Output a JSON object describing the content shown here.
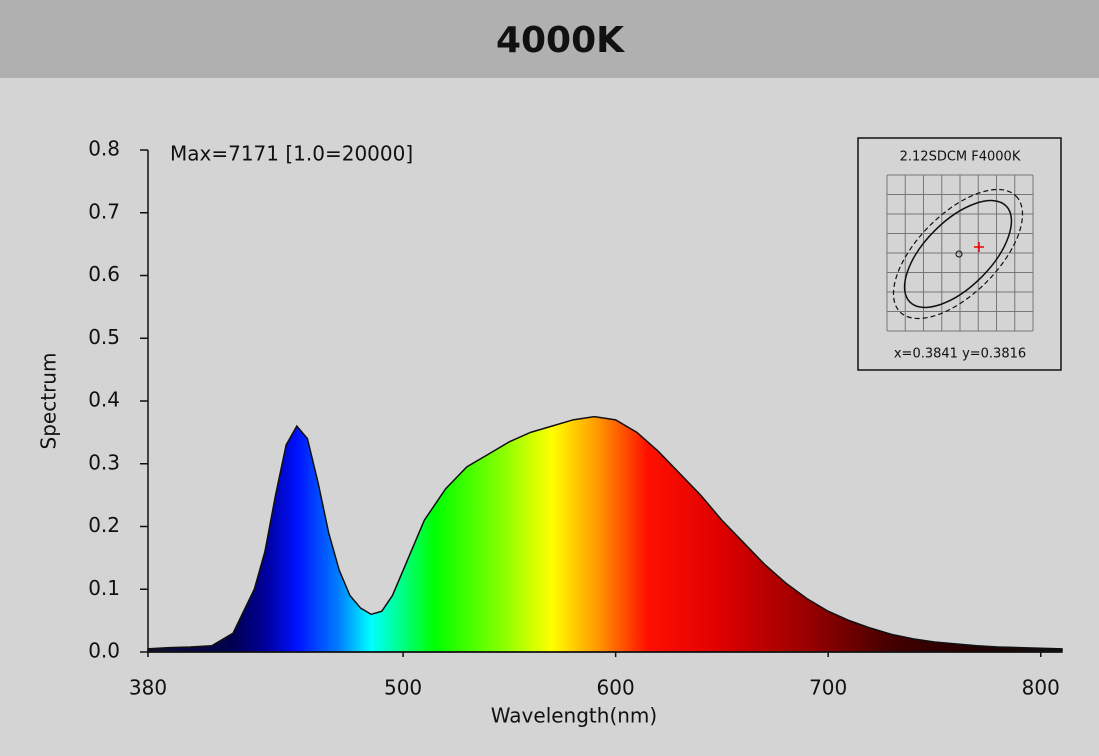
{
  "chart_data": {
    "type": "area",
    "title": "4000K",
    "annotation": "Max=7171  [1.0=20000]",
    "inset_title": "2.12SDCM  F4000K",
    "inset_label": "x=0.3841  y=0.3816",
    "xlabel": "Wavelength(nm)",
    "ylabel": "Spectrum",
    "x": [
      380,
      390,
      400,
      410,
      420,
      430,
      435,
      440,
      445,
      450,
      455,
      460,
      465,
      470,
      475,
      480,
      485,
      490,
      495,
      500,
      510,
      520,
      530,
      540,
      550,
      560,
      570,
      580,
      590,
      600,
      610,
      620,
      630,
      640,
      650,
      660,
      670,
      680,
      690,
      700,
      710,
      720,
      730,
      740,
      750,
      760,
      770,
      780,
      790,
      800,
      810
    ],
    "values": [
      0.005,
      0.007,
      0.008,
      0.01,
      0.03,
      0.1,
      0.16,
      0.25,
      0.33,
      0.36,
      0.34,
      0.27,
      0.19,
      0.13,
      0.09,
      0.07,
      0.06,
      0.065,
      0.09,
      0.13,
      0.21,
      0.26,
      0.295,
      0.315,
      0.335,
      0.35,
      0.36,
      0.37,
      0.375,
      0.37,
      0.35,
      0.32,
      0.285,
      0.25,
      0.21,
      0.175,
      0.14,
      0.11,
      0.085,
      0.065,
      0.05,
      0.038,
      0.028,
      0.021,
      0.016,
      0.013,
      0.01,
      0.008,
      0.007,
      0.006,
      0.005
    ],
    "xlim": [
      380,
      810
    ],
    "xticks": [
      380,
      500,
      600,
      700,
      800
    ],
    "ylim": [
      0,
      0.8
    ],
    "yticks": [
      {
        "value": 0,
        "label": "0.0"
      },
      0.1,
      0.2,
      0.3,
      0.4,
      0.5,
      0.6,
      0.7,
      0.8
    ],
    "grid": false
  }
}
